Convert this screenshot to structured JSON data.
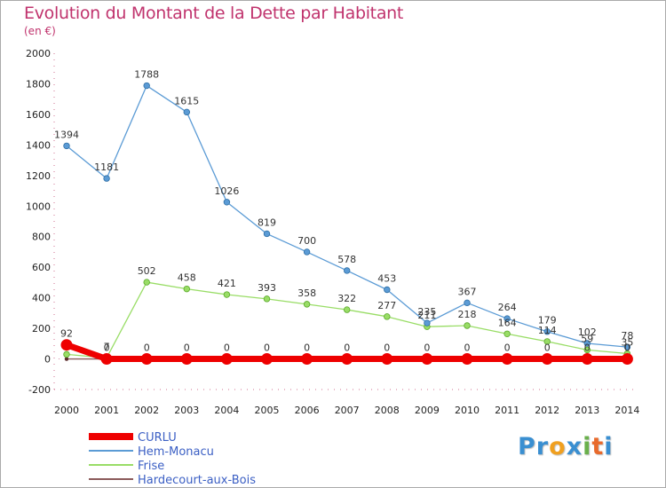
{
  "title": "Evolution du Montant de la Dette par Habitant",
  "subtitle": "(en €)",
  "logo": {
    "text": "Proxiti",
    "letters": [
      "P",
      "r",
      "o",
      "x",
      "i",
      "t",
      "i"
    ],
    "colors": [
      "#3a8fd1",
      "#3a8fd1",
      "#f0a020",
      "#3a8fd1",
      "#6ab04c",
      "#e86a2c",
      "#3a8fd1"
    ]
  },
  "chart_data": {
    "type": "line",
    "title": "Evolution du Montant de la Dette par Habitant",
    "subtitle": "(en €)",
    "x": [
      "2000",
      "2001",
      "2002",
      "2003",
      "2004",
      "2005",
      "2006",
      "2007",
      "2008",
      "2009",
      "2010",
      "2011",
      "2012",
      "2013",
      "2014"
    ],
    "ylim": [
      -200,
      2000
    ],
    "yticks": [
      -200,
      0,
      200,
      400,
      600,
      800,
      1000,
      1200,
      1400,
      1600,
      1800,
      2000
    ],
    "grid": false,
    "legend": "bottom-left",
    "series": [
      {
        "name": "CURLU",
        "color": "#ee0000",
        "values": [
          92,
          0,
          0,
          0,
          0,
          0,
          0,
          0,
          0,
          0,
          0,
          0,
          0,
          0,
          0
        ],
        "labels": [
          "92",
          "0",
          "0",
          "0",
          "0",
          "0",
          "0",
          "0",
          "0",
          "0",
          "0",
          "0",
          "0",
          "0",
          "0"
        ]
      },
      {
        "name": "Hem-Monacu",
        "color": "#5b9bd5",
        "values": [
          1394,
          1181,
          1788,
          1615,
          1026,
          819,
          700,
          578,
          453,
          235,
          367,
          264,
          179,
          102,
          78
        ],
        "labels": [
          "1394",
          "1181",
          "1788",
          "1615",
          "1026",
          "819",
          "700",
          "578",
          "453",
          "235",
          "367",
          "264",
          "179",
          "102",
          "78"
        ]
      },
      {
        "name": "Frise",
        "color": "#99dd66",
        "values": [
          30,
          7,
          502,
          458,
          421,
          393,
          358,
          322,
          277,
          211,
          218,
          164,
          114,
          59,
          35
        ],
        "labels": [
          "",
          "7",
          "502",
          "458",
          "421",
          "393",
          "358",
          "322",
          "277",
          "211",
          "218",
          "164",
          "114",
          "59",
          "35"
        ]
      },
      {
        "name": "Hardecourt-aux-Bois",
        "color": "#8b5a5a",
        "values": [
          0,
          0,
          0,
          0,
          0,
          0,
          0,
          0,
          0,
          0,
          0,
          0,
          0,
          0,
          0
        ],
        "labels": [
          "",
          "",
          "",
          "",
          "",
          "",
          "",
          "",
          "",
          "",
          "",
          "",
          "",
          "",
          ""
        ]
      }
    ]
  }
}
